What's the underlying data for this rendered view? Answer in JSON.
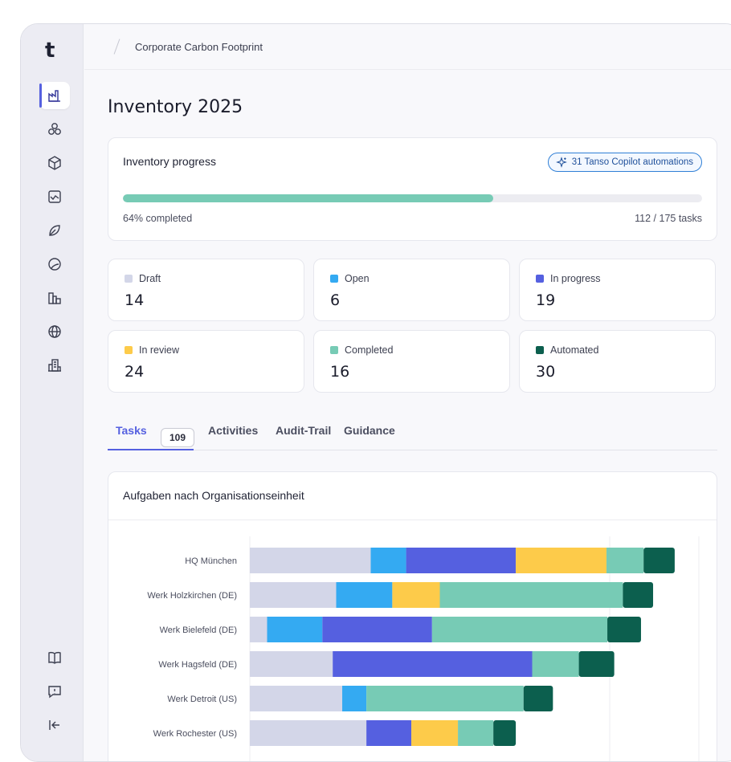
{
  "sidebar": {
    "logo": "t",
    "nav_icons": [
      "factory-icon",
      "hexagon-cluster-icon",
      "cube-icon",
      "chart-window-icon",
      "leaf-icon",
      "circle-orbit-icon",
      "buildings-icon",
      "globe-icon",
      "office-building-icon"
    ],
    "bottom_icons": [
      "book-icon",
      "feedback-icon",
      "collapse-sidebar-icon"
    ]
  },
  "breadcrumb": {
    "current": "Corporate Carbon Footprint"
  },
  "page": {
    "title": "Inventory 2025"
  },
  "progress": {
    "title": "Inventory progress",
    "copilot_badge": "31 Tanso Copilot automations",
    "percent": 64,
    "completed_label": "64% completed",
    "tasks_label": "112 / 175 tasks"
  },
  "statuses": [
    {
      "label": "Draft",
      "value": "14",
      "color": "#d3d6e8"
    },
    {
      "label": "Open",
      "value": "6",
      "color": "#34aaf2"
    },
    {
      "label": "In progress",
      "value": "19",
      "color": "#5560e0"
    },
    {
      "label": "In review",
      "value": "24",
      "color": "#fdcb4a"
    },
    {
      "label": "Completed",
      "value": "16",
      "color": "#77cbb5"
    },
    {
      "label": "Automated",
      "value": "30",
      "color": "#0c5f4e"
    }
  ],
  "tabs": [
    {
      "label": "Tasks",
      "count": "109"
    },
    {
      "label": "Activities"
    },
    {
      "label": "Audit-Trail"
    },
    {
      "label": "Guidance"
    }
  ],
  "chart_data": {
    "type": "bar",
    "orientation": "horizontal-stacked",
    "title": "Aufgaben nach Organisationseinheit",
    "categories": [
      "HQ München",
      "Werk Holzkirchen (DE)",
      "Werk Bielefeld (DE)",
      "Werk Hagsfeld (DE)",
      "Werk Detroit (US)",
      "Werk Rochester (US)"
    ],
    "series": [
      {
        "name": "Draft",
        "color": "#d3d6e8",
        "values": [
          14.0,
          10.0,
          2.0,
          9.6,
          10.7,
          13.5
        ]
      },
      {
        "name": "Open",
        "color": "#34aaf2",
        "values": [
          4.1,
          6.5,
          6.4,
          0,
          2.8,
          0
        ]
      },
      {
        "name": "In progress",
        "color": "#5560e0",
        "values": [
          12.7,
          0,
          12.7,
          23.1,
          0,
          5.2
        ]
      },
      {
        "name": "In review",
        "color": "#fdcb4a",
        "values": [
          10.5,
          5.5,
          0,
          0,
          0,
          5.4
        ]
      },
      {
        "name": "Completed",
        "color": "#77cbb5",
        "values": [
          4.3,
          21.2,
          20.3,
          5.4,
          18.2,
          4.1
        ]
      },
      {
        "name": "Automated",
        "color": "#0c5f4e",
        "values": [
          3.6,
          3.5,
          3.9,
          4.1,
          3.4,
          2.6
        ]
      }
    ],
    "xlim": [
      0,
      52
    ]
  }
}
